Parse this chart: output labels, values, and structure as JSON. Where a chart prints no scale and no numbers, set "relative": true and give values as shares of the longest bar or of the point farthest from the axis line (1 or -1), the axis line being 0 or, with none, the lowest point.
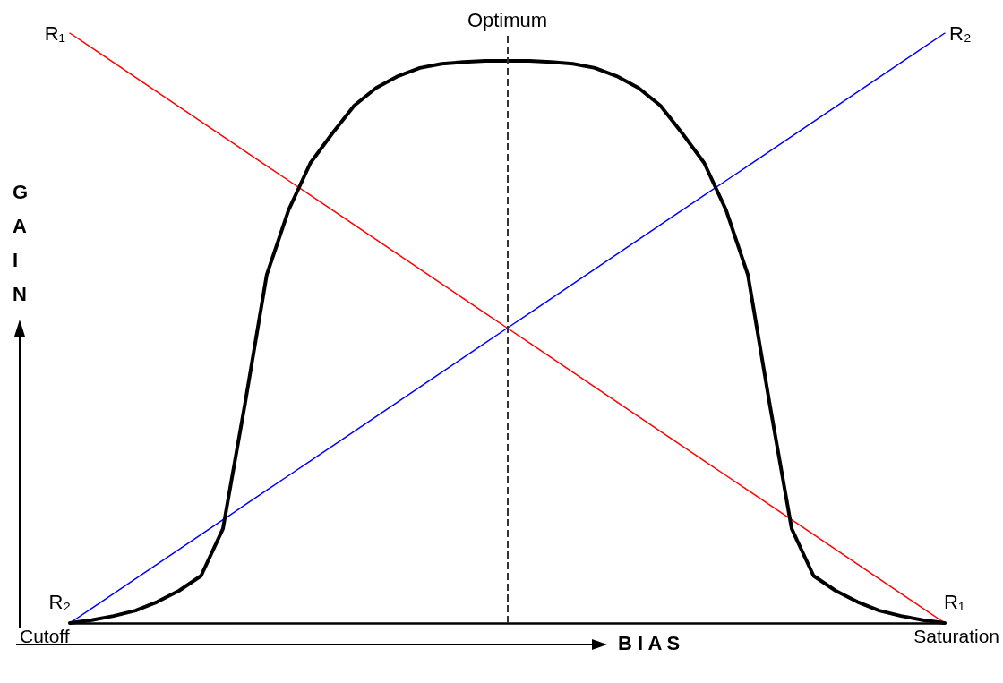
{
  "chart_data": {
    "type": "line",
    "relative": true,
    "xlabel": "B I A S",
    "ylabel": "GAIN",
    "categories": [
      null,
      null,
      null,
      null,
      null,
      null,
      null,
      null,
      null,
      null,
      null,
      null,
      null,
      null,
      null,
      null,
      null,
      null,
      null,
      null,
      null,
      null,
      null,
      null,
      null,
      null,
      null,
      null,
      null,
      null,
      null,
      null,
      null,
      null,
      null,
      null,
      null,
      null,
      null,
      null,
      null
    ],
    "series": [
      {
        "color": "#000000",
        "values": [
          0,
          0.005,
          0.012,
          0.021,
          0.036,
          0.055,
          0.08,
          0.16,
          0.37,
          0.59,
          0.7,
          0.78,
          0.83,
          0.877,
          0.907,
          0.927,
          0.941,
          0.948,
          0.951,
          0.953,
          0.953,
          0.953,
          0.951,
          0.948,
          0.941,
          0.927,
          0.907,
          0.877,
          0.83,
          0.78,
          0.7,
          0.59,
          0.37,
          0.16,
          0.08,
          0.055,
          0.036,
          0.021,
          0.012,
          0.005,
          0
        ]
      },
      {
        "name": "R₁",
        "color": "#ff0000",
        "values": [
          1,
          0.975,
          0.95,
          0.925,
          0.9,
          0.875,
          0.85,
          0.825,
          0.8,
          0.775,
          0.75,
          0.725,
          0.7,
          0.675,
          0.65,
          0.625,
          0.6,
          0.575,
          0.55,
          0.525,
          0.5,
          0.475,
          0.45,
          0.425,
          0.4,
          0.375,
          0.35,
          0.325,
          0.3,
          0.275,
          0.25,
          0.225,
          0.2,
          0.175,
          0.15,
          0.125,
          0.1,
          0.075,
          0.05,
          0.025,
          0
        ]
      },
      {
        "name": "R₂",
        "color": "#0000ff",
        "values": [
          0,
          0.025,
          0.05,
          0.075,
          0.1,
          0.125,
          0.15,
          0.175,
          0.2,
          0.225,
          0.25,
          0.275,
          0.3,
          0.325,
          0.35,
          0.375,
          0.4,
          0.425,
          0.45,
          0.475,
          0.5,
          0.525,
          0.55,
          0.575,
          0.6,
          0.625,
          0.65,
          0.675,
          0.7,
          0.725,
          0.75,
          0.775,
          0.8,
          0.825,
          0.85,
          0.875,
          0.9,
          0.925,
          0.95,
          0.975,
          1
        ]
      }
    ],
    "ref_lines": [
      {
        "axis": "x",
        "label": "Optimum",
        "color": "#333333",
        "line_style": "dashed"
      }
    ],
    "annotations": [
      "Cutoff",
      "Saturation"
    ],
    "grid": false,
    "marker": "none",
    "line_style": "solid"
  }
}
